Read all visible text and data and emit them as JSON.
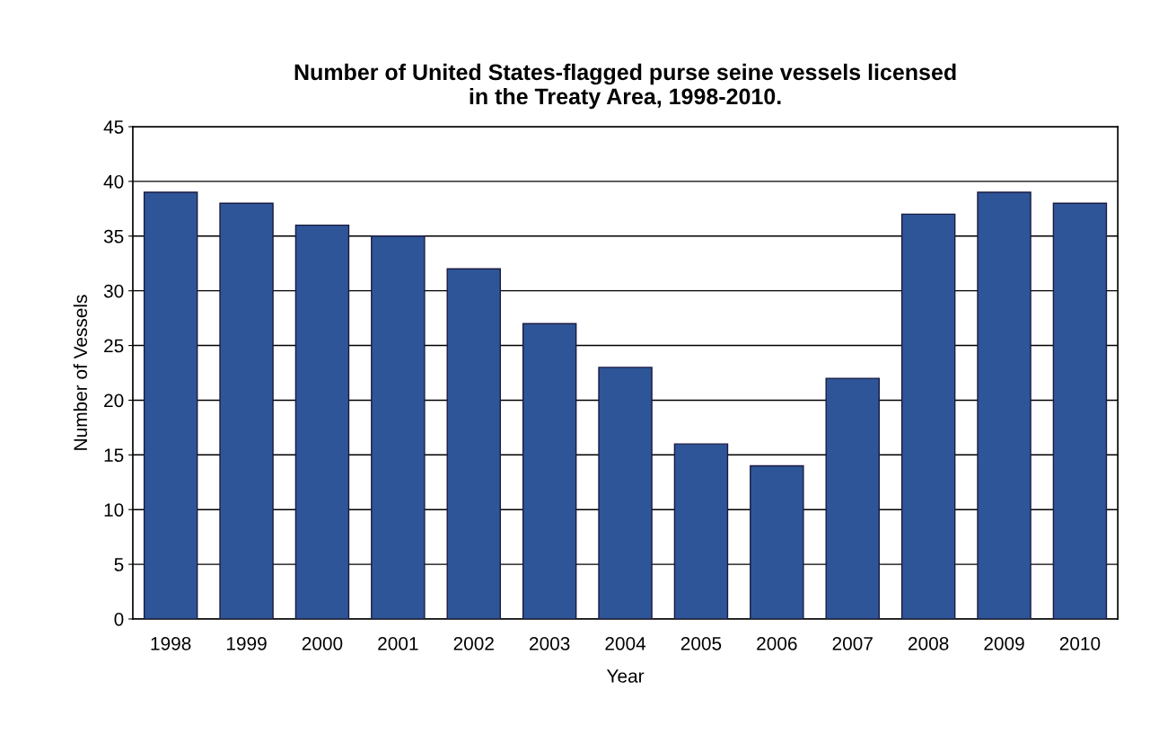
{
  "chart_data": {
    "type": "bar",
    "title": "Number of United States-flagged purse seine vessels licensed\nin the Treaty Area, 1998-2010.",
    "xlabel": "Year",
    "ylabel": "Number of Vessels",
    "categories": [
      "1998",
      "1999",
      "2000",
      "2001",
      "2002",
      "2003",
      "2004",
      "2005",
      "2006",
      "2007",
      "2008",
      "2009",
      "2010"
    ],
    "values": [
      39,
      38,
      36,
      35,
      32,
      27,
      23,
      16,
      14,
      22,
      37,
      39,
      38
    ],
    "color": "#2e5597",
    "ylim": [
      0,
      45
    ],
    "yticks": [
      0,
      5,
      10,
      15,
      20,
      25,
      30,
      35,
      40,
      45
    ],
    "grid": "y"
  }
}
